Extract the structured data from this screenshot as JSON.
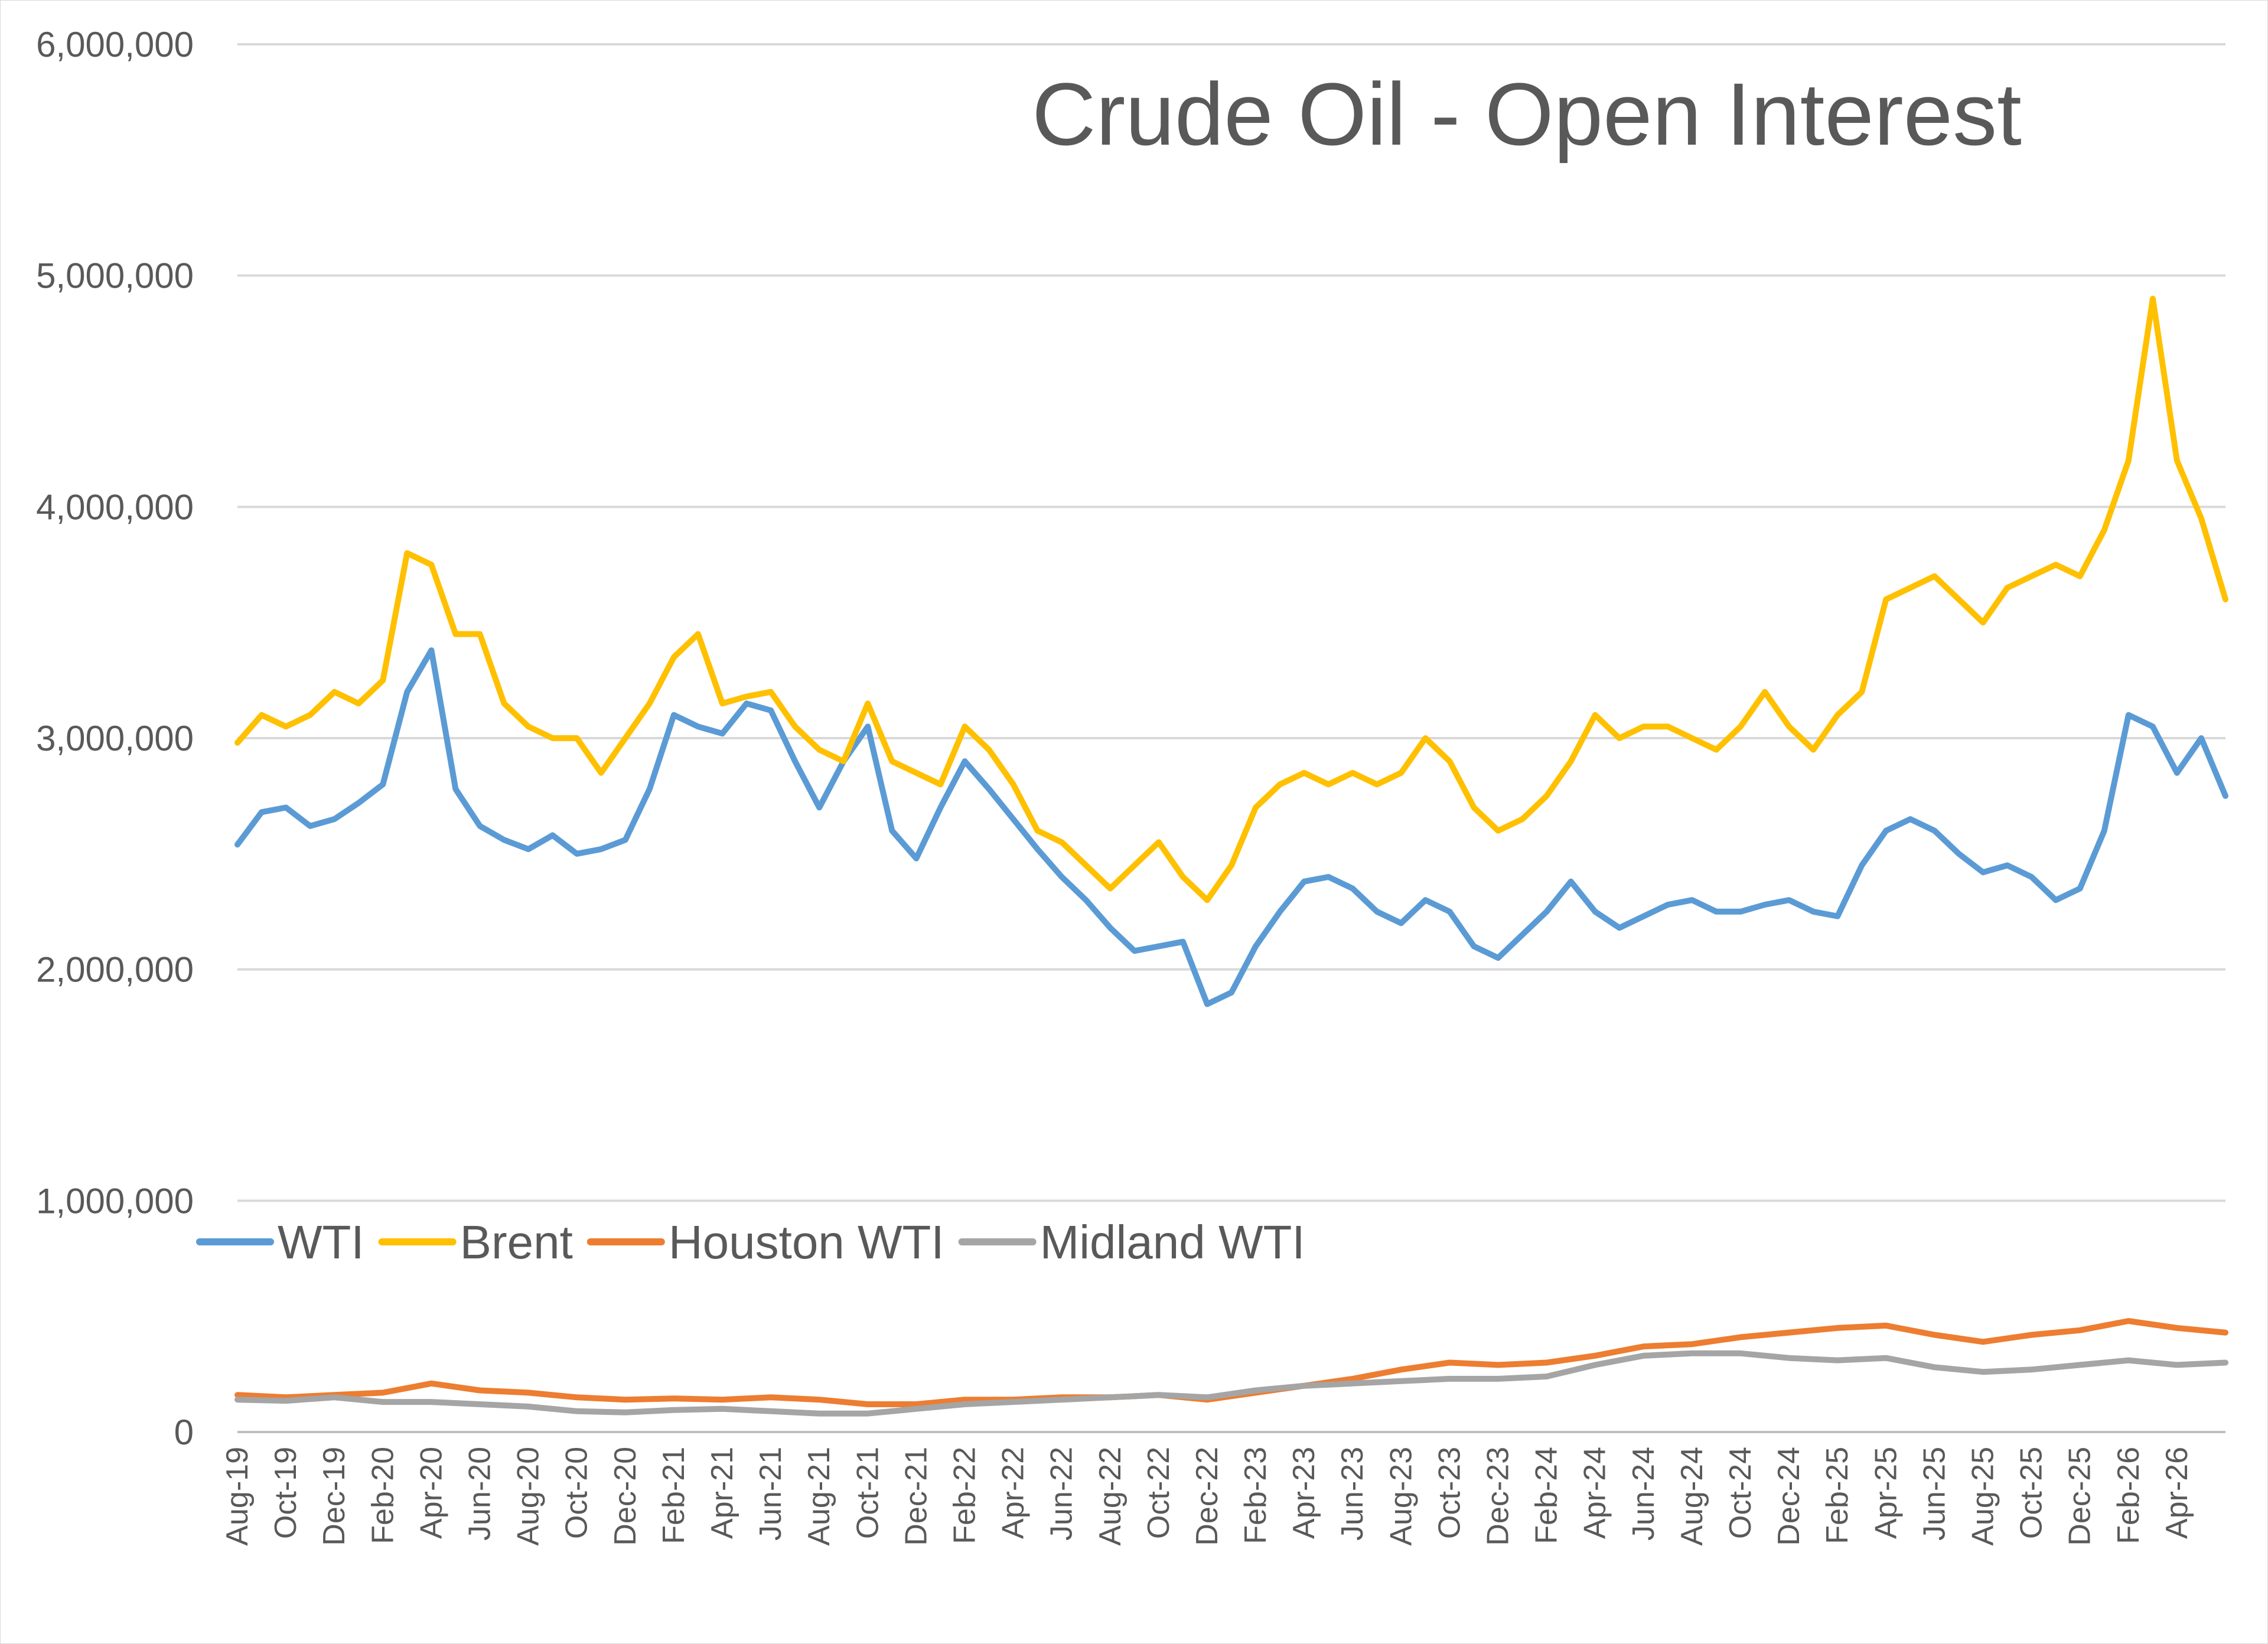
{
  "chart_data": {
    "type": "line",
    "title": "Crude Oil - Open Interest",
    "xlabel": "",
    "ylabel": "",
    "ylim": [
      0,
      6000000
    ],
    "y_ticks": [
      "0",
      "1,000,000",
      "2,000,000",
      "3,000,000",
      "4,000,000",
      "5,000,000",
      "6,000,000"
    ],
    "y_tick_values": [
      0,
      1000000,
      2000000,
      3000000,
      4000000,
      5000000,
      6000000
    ],
    "x_start": "Aug-19",
    "x_end": "Jun-26",
    "x_ticks": [
      "Aug-19",
      "Oct-19",
      "Dec-19",
      "Feb-20",
      "Apr-20",
      "Jun-20",
      "Aug-20",
      "Oct-20",
      "Dec-20",
      "Feb-21",
      "Apr-21",
      "Jun-21",
      "Aug-21",
      "Oct-21",
      "Dec-21",
      "Feb-22",
      "Apr-22",
      "Jun-22",
      "Aug-22",
      "Oct-22",
      "Dec-22",
      "Feb-23",
      "Apr-23",
      "Jun-23",
      "Aug-23",
      "Oct-23",
      "Dec-23",
      "Feb-24",
      "Apr-24",
      "Jun-24",
      "Aug-24",
      "Oct-24",
      "Dec-24",
      "Feb-25",
      "Apr-25",
      "Jun-25",
      "Aug-25",
      "Oct-25",
      "Dec-25",
      "Feb-26",
      "Apr-26"
    ],
    "grid": true,
    "legend_position": "inside-left",
    "series": [
      {
        "name": "WTI",
        "color": "#5b9bd5",
        "x": [
          "Aug-19",
          "Sep-19",
          "Oct-19",
          "Nov-19",
          "Dec-19",
          "Jan-20",
          "Feb-20",
          "Mar-20",
          "Apr-20",
          "May-20",
          "Jun-20",
          "Jul-20",
          "Aug-20",
          "Sep-20",
          "Oct-20",
          "Nov-20",
          "Dec-20",
          "Jan-21",
          "Feb-21",
          "Mar-21",
          "Apr-21",
          "May-21",
          "Jun-21",
          "Jul-21",
          "Aug-21",
          "Sep-21",
          "Oct-21",
          "Nov-21",
          "Dec-21",
          "Jan-22",
          "Feb-22",
          "Mar-22",
          "Apr-22",
          "May-22",
          "Jun-22",
          "Jul-22",
          "Aug-22",
          "Sep-22",
          "Oct-22",
          "Nov-22",
          "Dec-22",
          "Jan-23",
          "Feb-23",
          "Mar-23",
          "Apr-23",
          "May-23",
          "Jun-23",
          "Jul-23",
          "Aug-23",
          "Sep-23",
          "Oct-23",
          "Nov-23",
          "Dec-23",
          "Jan-24",
          "Feb-24",
          "Mar-24",
          "Apr-24",
          "May-24",
          "Jun-24",
          "Jul-24",
          "Aug-24",
          "Sep-24",
          "Oct-24",
          "Nov-24",
          "Dec-24",
          "Jan-25",
          "Feb-25",
          "Mar-25",
          "Apr-25",
          "May-25",
          "Jun-25",
          "Jul-25",
          "Aug-25",
          "Sep-25",
          "Oct-25",
          "Nov-25",
          "Dec-25",
          "Jan-26",
          "Feb-26",
          "Mar-26",
          "Apr-26",
          "May-26",
          "Jun-26"
        ],
        "values": [
          2540000,
          2680000,
          2700000,
          2620000,
          2650000,
          2720000,
          2800000,
          3200000,
          3380000,
          2780000,
          2620000,
          2560000,
          2520000,
          2580000,
          2500000,
          2520000,
          2560000,
          2780000,
          3100000,
          3050000,
          3020000,
          3150000,
          3120000,
          2900000,
          2700000,
          2900000,
          3050000,
          2600000,
          2480000,
          2700000,
          2900000,
          2780000,
          2650000,
          2520000,
          2400000,
          2300000,
          2180000,
          2080000,
          2100000,
          2120000,
          1850000,
          1900000,
          2100000,
          2250000,
          2380000,
          2400000,
          2350000,
          2250000,
          2200000,
          2300000,
          2250000,
          2100000,
          2050000,
          2150000,
          2250000,
          2380000,
          2250000,
          2180000,
          2230000,
          2280000,
          2300000,
          2250000,
          2250000,
          2280000,
          2300000,
          2250000,
          2230000,
          2450000,
          2600000,
          2650000,
          2600000,
          2500000,
          2420000,
          2450000,
          2400000,
          2300000,
          2350000,
          2600000,
          3100000,
          3050000,
          2850000,
          3000000,
          2750000
        ]
      },
      {
        "name": "Brent",
        "color": "#ffc000",
        "x": [
          "Aug-19",
          "Sep-19",
          "Oct-19",
          "Nov-19",
          "Dec-19",
          "Jan-20",
          "Feb-20",
          "Mar-20",
          "Apr-20",
          "May-20",
          "Jun-20",
          "Jul-20",
          "Aug-20",
          "Sep-20",
          "Oct-20",
          "Nov-20",
          "Dec-20",
          "Jan-21",
          "Feb-21",
          "Mar-21",
          "Apr-21",
          "May-21",
          "Jun-21",
          "Jul-21",
          "Aug-21",
          "Sep-21",
          "Oct-21",
          "Nov-21",
          "Dec-21",
          "Jan-22",
          "Feb-22",
          "Mar-22",
          "Apr-22",
          "May-22",
          "Jun-22",
          "Jul-22",
          "Aug-22",
          "Sep-22",
          "Oct-22",
          "Nov-22",
          "Dec-22",
          "Jan-23",
          "Feb-23",
          "Mar-23",
          "Apr-23",
          "May-23",
          "Jun-23",
          "Jul-23",
          "Aug-23",
          "Sep-23",
          "Oct-23",
          "Nov-23",
          "Dec-23",
          "Jan-24",
          "Feb-24",
          "Mar-24",
          "Apr-24",
          "May-24",
          "Jun-24",
          "Jul-24",
          "Aug-24",
          "Sep-24",
          "Oct-24",
          "Nov-24",
          "Dec-24",
          "Jan-25",
          "Feb-25",
          "Mar-25",
          "Apr-25",
          "May-25",
          "Jun-25",
          "Jul-25",
          "Aug-25",
          "Sep-25",
          "Oct-25",
          "Nov-25",
          "Dec-25",
          "Jan-26",
          "Feb-26",
          "Mar-26",
          "Apr-26",
          "May-26",
          "Jun-26"
        ],
        "values": [
          2980000,
          3100000,
          3050000,
          3100000,
          3200000,
          3150000,
          3250000,
          3800000,
          3750000,
          3450000,
          3450000,
          3150000,
          3050000,
          3000000,
          3000000,
          2850000,
          3000000,
          3150000,
          3350000,
          3450000,
          3150000,
          3180000,
          3200000,
          3050000,
          2950000,
          2900000,
          3150000,
          2900000,
          2850000,
          2800000,
          3050000,
          2950000,
          2800000,
          2600000,
          2550000,
          2450000,
          2350000,
          2450000,
          2550000,
          2400000,
          2300000,
          2450000,
          2700000,
          2800000,
          2850000,
          2800000,
          2850000,
          2800000,
          2850000,
          3000000,
          2900000,
          2700000,
          2600000,
          2650000,
          2750000,
          2900000,
          3100000,
          3000000,
          3050000,
          3050000,
          3000000,
          2950000,
          3050000,
          3200000,
          3050000,
          2950000,
          3100000,
          3200000,
          3600000,
          3650000,
          3700000,
          3600000,
          3500000,
          3650000,
          3700000,
          3750000,
          3700000,
          3900000,
          4200000,
          4900000,
          4200000,
          3950000,
          3600000
        ]
      },
      {
        "name": "Houston WTI",
        "color": "#ed7d31",
        "x": [
          "Aug-19",
          "Oct-19",
          "Dec-19",
          "Feb-20",
          "Apr-20",
          "Jun-20",
          "Aug-20",
          "Oct-20",
          "Dec-20",
          "Feb-21",
          "Apr-21",
          "Jun-21",
          "Aug-21",
          "Oct-21",
          "Dec-21",
          "Feb-22",
          "Apr-22",
          "Jun-22",
          "Aug-22",
          "Oct-22",
          "Dec-22",
          "Feb-23",
          "Apr-23",
          "Jun-23",
          "Aug-23",
          "Oct-23",
          "Dec-23",
          "Feb-24",
          "Apr-24",
          "Jun-24",
          "Aug-24",
          "Oct-24",
          "Dec-24",
          "Feb-25",
          "Apr-25",
          "Jun-25",
          "Aug-25",
          "Oct-25",
          "Dec-25",
          "Feb-26",
          "Apr-26",
          "Jun-26"
        ],
        "values": [
          160000,
          150000,
          160000,
          170000,
          210000,
          180000,
          170000,
          150000,
          140000,
          145000,
          140000,
          150000,
          140000,
          120000,
          120000,
          140000,
          140000,
          150000,
          150000,
          160000,
          140000,
          170000,
          200000,
          230000,
          270000,
          300000,
          290000,
          300000,
          330000,
          370000,
          380000,
          410000,
          430000,
          450000,
          460000,
          420000,
          390000,
          420000,
          440000,
          480000,
          450000,
          430000
        ]
      },
      {
        "name": "Midland WTI",
        "color": "#a5a5a5",
        "x": [
          "Aug-19",
          "Oct-19",
          "Dec-19",
          "Feb-20",
          "Apr-20",
          "Jun-20",
          "Aug-20",
          "Oct-20",
          "Dec-20",
          "Feb-21",
          "Apr-21",
          "Jun-21",
          "Aug-21",
          "Oct-21",
          "Dec-21",
          "Feb-22",
          "Apr-22",
          "Jun-22",
          "Aug-22",
          "Oct-22",
          "Dec-22",
          "Feb-23",
          "Apr-23",
          "Jun-23",
          "Aug-23",
          "Oct-23",
          "Dec-23",
          "Feb-24",
          "Apr-24",
          "Jun-24",
          "Aug-24",
          "Oct-24",
          "Dec-24",
          "Feb-25",
          "Apr-25",
          "Jun-25",
          "Aug-25",
          "Oct-25",
          "Dec-25",
          "Feb-26",
          "Apr-26",
          "Jun-26"
        ],
        "values": [
          140000,
          135000,
          150000,
          130000,
          130000,
          120000,
          110000,
          90000,
          85000,
          95000,
          100000,
          90000,
          80000,
          80000,
          100000,
          120000,
          130000,
          140000,
          150000,
          160000,
          150000,
          180000,
          200000,
          210000,
          220000,
          230000,
          230000,
          240000,
          290000,
          330000,
          340000,
          340000,
          320000,
          310000,
          320000,
          280000,
          260000,
          270000,
          290000,
          310000,
          290000,
          300000
        ]
      }
    ]
  }
}
